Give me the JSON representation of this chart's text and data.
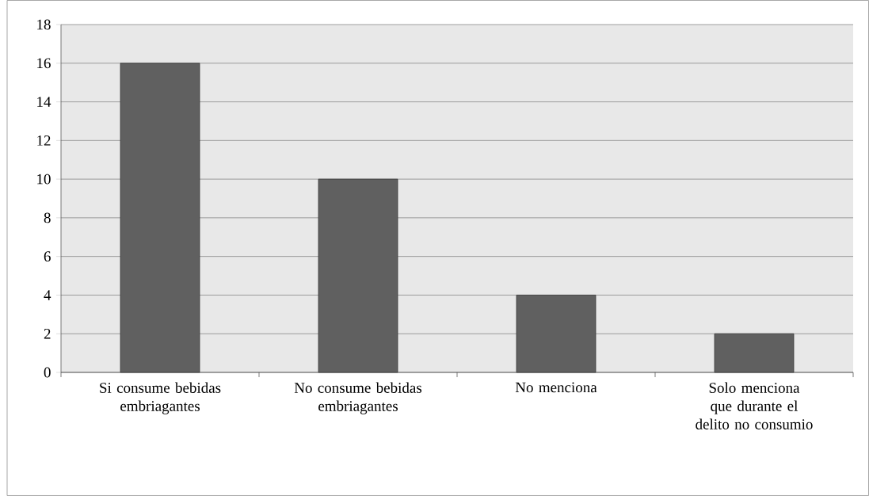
{
  "chart_data": {
    "type": "bar",
    "categories": [
      "Si consume bebidas embriagantes",
      "No consume bebidas embriagantes",
      "No menciona",
      "Solo menciona que durante el delito no consumio"
    ],
    "values": [
      16,
      10,
      4,
      2
    ],
    "color": "#606060",
    "ylim": [
      0,
      18
    ],
    "yticks": [
      0,
      2,
      4,
      6,
      8,
      10,
      12,
      14,
      16,
      18
    ],
    "grid": "y"
  }
}
